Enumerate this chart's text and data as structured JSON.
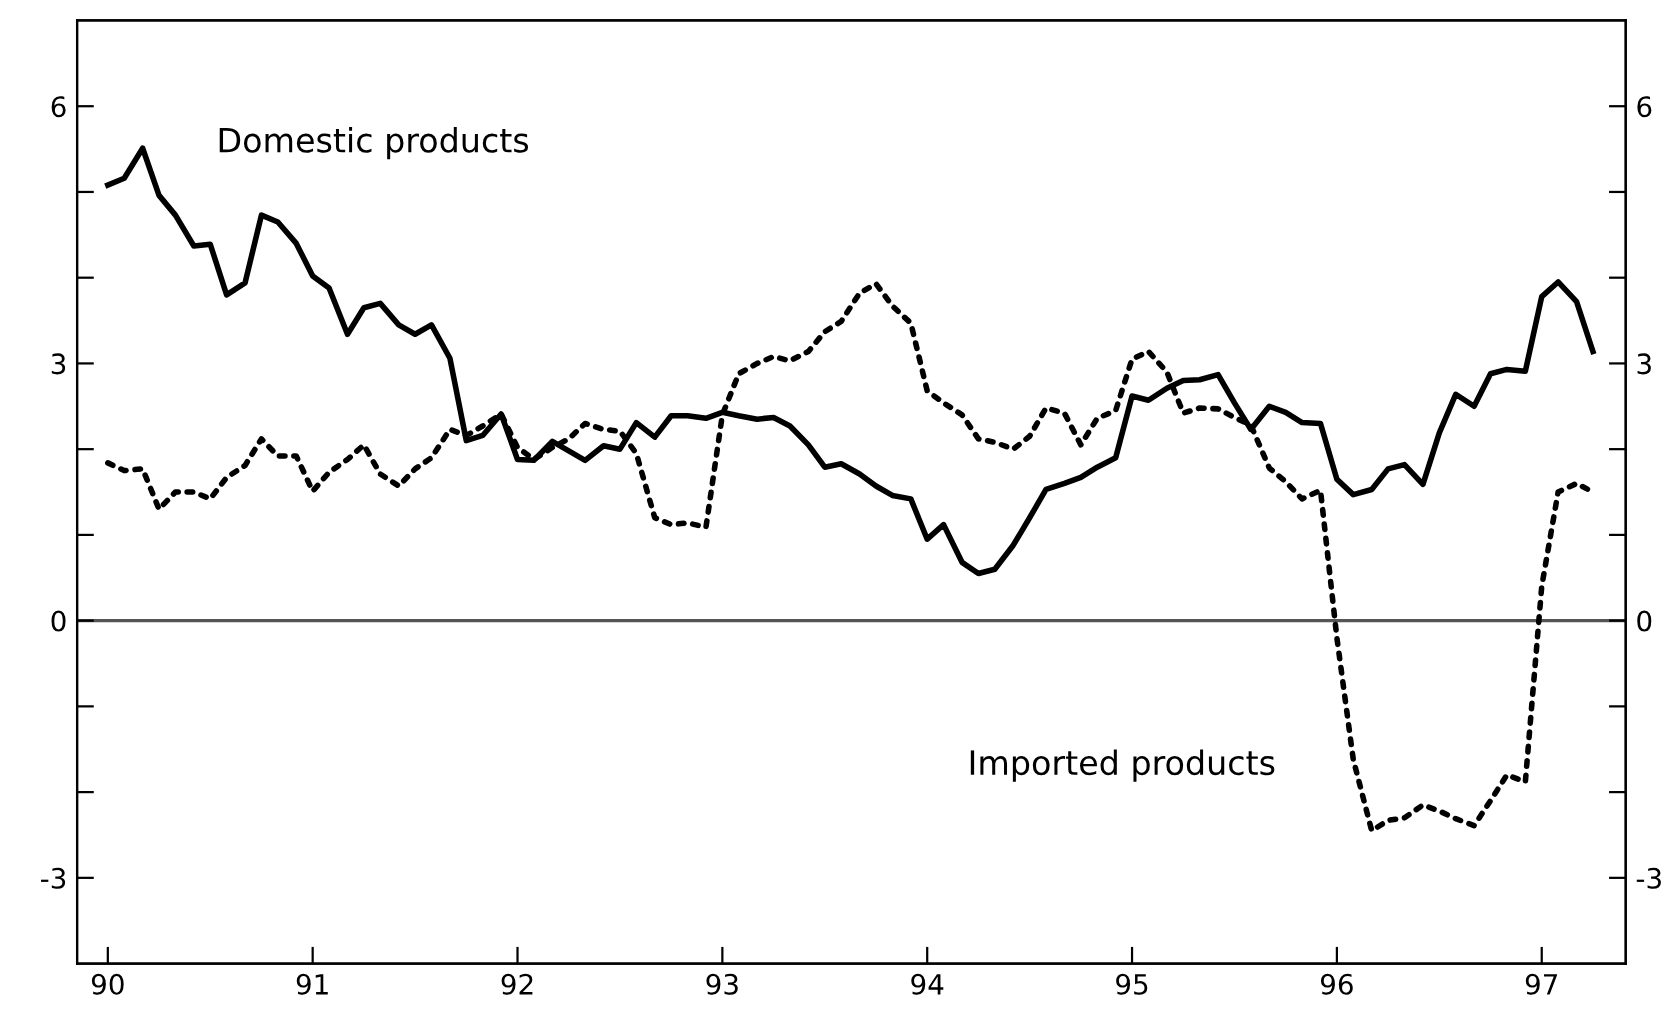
{
  "chart_data": {
    "type": "line",
    "x": [
      90.0,
      90.08,
      90.17,
      90.25,
      90.33,
      90.42,
      90.5,
      90.58,
      90.67,
      90.75,
      90.83,
      90.92,
      91.0,
      91.08,
      91.17,
      91.25,
      91.33,
      91.42,
      91.5,
      91.58,
      91.67,
      91.75,
      91.83,
      91.92,
      92.0,
      92.08,
      92.17,
      92.25,
      92.33,
      92.42,
      92.5,
      92.58,
      92.67,
      92.75,
      92.83,
      92.92,
      93.0,
      93.08,
      93.17,
      93.25,
      93.33,
      93.42,
      93.5,
      93.58,
      93.67,
      93.75,
      93.83,
      93.92,
      94.0,
      94.08,
      94.17,
      94.25,
      94.33,
      94.42,
      94.5,
      94.58,
      94.67,
      94.75,
      94.83,
      94.92,
      95.0,
      95.08,
      95.17,
      95.25,
      95.33,
      95.42,
      95.5,
      95.58,
      95.67,
      95.75,
      95.83,
      95.92,
      96.0,
      96.08,
      96.17,
      96.25,
      96.33,
      96.42,
      96.5,
      96.58,
      96.67,
      96.75,
      96.83,
      96.92,
      97.0,
      97.08,
      97.17,
      97.25
    ],
    "series": [
      {
        "name": "Domestic products",
        "color": "#000000",
        "line_style": "solid",
        "values": [
          5.08,
          5.16,
          5.51,
          4.96,
          4.73,
          4.37,
          4.39,
          3.8,
          3.94,
          4.73,
          4.65,
          4.4,
          4.02,
          3.88,
          3.34,
          3.65,
          3.7,
          3.45,
          3.34,
          3.45,
          3.06,
          2.1,
          2.16,
          2.41,
          1.88,
          1.87,
          2.09,
          1.98,
          1.87,
          2.04,
          2.0,
          2.31,
          2.14,
          2.39,
          2.39,
          2.36,
          2.43,
          2.39,
          2.35,
          2.37,
          2.27,
          2.05,
          1.79,
          1.83,
          1.71,
          1.57,
          1.46,
          1.42,
          0.95,
          1.12,
          0.68,
          0.55,
          0.6,
          0.88,
          1.2,
          1.53,
          1.6,
          1.67,
          1.79,
          1.9,
          2.62,
          2.57,
          2.71,
          2.8,
          2.81,
          2.87,
          2.54,
          2.23,
          2.5,
          2.43,
          2.31,
          2.3,
          1.65,
          1.47,
          1.53,
          1.77,
          1.82,
          1.59,
          2.19,
          2.64,
          2.5,
          2.88,
          2.93,
          2.91,
          3.78,
          3.95,
          3.72,
          3.14
        ]
      },
      {
        "name": "Imported products",
        "color": "#000000",
        "line_style": "dotted",
        "values": [
          1.84,
          1.75,
          1.77,
          1.3,
          1.5,
          1.5,
          1.42,
          1.67,
          1.81,
          2.12,
          1.92,
          1.92,
          1.51,
          1.73,
          1.88,
          2.05,
          1.71,
          1.57,
          1.77,
          1.9,
          2.23,
          2.16,
          2.27,
          2.41,
          2.02,
          1.88,
          2.02,
          2.12,
          2.3,
          2.23,
          2.21,
          1.95,
          1.2,
          1.12,
          1.14,
          1.09,
          2.4,
          2.88,
          3.0,
          3.08,
          3.03,
          3.14,
          3.37,
          3.49,
          3.82,
          3.93,
          3.67,
          3.47,
          2.68,
          2.54,
          2.4,
          2.12,
          2.08,
          2.0,
          2.15,
          2.48,
          2.42,
          2.05,
          2.36,
          2.45,
          3.05,
          3.14,
          2.9,
          2.42,
          2.48,
          2.47,
          2.37,
          2.28,
          1.78,
          1.62,
          1.42,
          1.52,
          -0.2,
          -1.62,
          -2.45,
          -2.33,
          -2.3,
          -2.15,
          -2.22,
          -2.31,
          -2.39,
          -2.1,
          -1.8,
          -1.88,
          0.4,
          1.5,
          1.6,
          1.5
        ]
      }
    ],
    "ref_lines": [
      {
        "axis": "y",
        "value": 0,
        "color": "#555555"
      }
    ],
    "xlim": [
      89.85,
      97.41
    ],
    "xticks": [
      90,
      91,
      92,
      93,
      94,
      95,
      96,
      97
    ],
    "ylim": [
      -4,
      7
    ],
    "yticks": [
      {
        "value": -3,
        "label": "-3"
      },
      {
        "value": -2,
        "label": null
      },
      {
        "value": -1,
        "label": null
      },
      0,
      {
        "value": 1,
        "label": null
      },
      {
        "value": 2,
        "label": null
      },
      3,
      {
        "value": 4,
        "label": null
      },
      {
        "value": 5,
        "label": null
      },
      6
    ],
    "y2lim": [
      -4,
      7
    ],
    "y2ticks": [
      {
        "value": -3,
        "label": "-3"
      },
      {
        "value": -2,
        "label": null
      },
      {
        "value": -1,
        "label": null
      },
      0,
      {
        "value": 1,
        "label": null
      },
      {
        "value": 2,
        "label": null
      },
      3,
      {
        "value": 4,
        "label": null
      },
      {
        "value": 5,
        "label": null
      },
      6
    ],
    "grid": false,
    "legend": false
  }
}
